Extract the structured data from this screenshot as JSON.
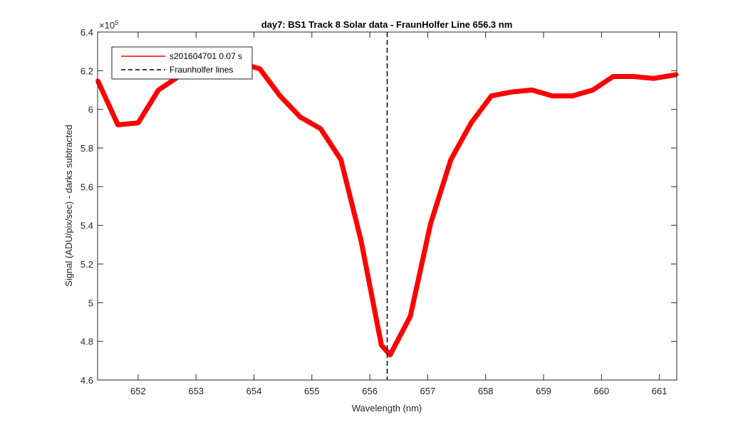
{
  "chart_data": {
    "type": "line",
    "title": "day7: BS1  Track 8 Solar data - FraunHolfer Line 656.3 nm",
    "xlabel": "Wavelength (nm)",
    "ylabel": "Signal (ADU/pix/sec) - darks subtracted",
    "y_exponent_label": "×10",
    "y_exponent_power": "5",
    "xlim": [
      651.3,
      661.3
    ],
    "ylim": [
      4.6,
      6.4
    ],
    "y_multiplier": 100000,
    "x_ticks": [
      652,
      653,
      654,
      655,
      656,
      657,
      658,
      659,
      660,
      661
    ],
    "x_tick_labels": [
      "652",
      "653",
      "654",
      "655",
      "656",
      "657",
      "658",
      "659",
      "660",
      "661"
    ],
    "y_ticks": [
      4.6,
      4.8,
      5.0,
      5.2,
      5.4,
      5.6,
      5.8,
      6.0,
      6.2,
      6.4
    ],
    "y_tick_labels": [
      "4.6",
      "4.8",
      "5",
      "5.2",
      "5.4",
      "5.6",
      "5.8",
      "6",
      "6.2",
      "6.4"
    ],
    "grid": false,
    "legend_position": "top-left",
    "series": [
      {
        "name": "s201604701 0.07 s",
        "color": "#ff0000",
        "style": "solid",
        "x": [
          651.3,
          651.65,
          652.0,
          652.35,
          652.7,
          653.05,
          653.4,
          653.75,
          654.1,
          654.45,
          654.8,
          655.15,
          655.5,
          655.85,
          656.2,
          656.35,
          656.7,
          657.05,
          657.4,
          657.75,
          658.1,
          658.45,
          658.8,
          659.15,
          659.5,
          659.85,
          660.2,
          660.55,
          660.9,
          661.3
        ],
        "y": [
          6.15,
          5.92,
          5.93,
          6.1,
          6.17,
          6.21,
          6.23,
          6.24,
          6.21,
          6.07,
          5.96,
          5.9,
          5.74,
          5.32,
          4.78,
          4.73,
          4.93,
          5.41,
          5.74,
          5.93,
          6.07,
          6.09,
          6.1,
          6.07,
          6.07,
          6.1,
          6.17,
          6.17,
          6.16,
          6.18
        ]
      }
    ],
    "reference_lines": [
      {
        "name": "Fraunholfer lines",
        "x": 656.3,
        "color": "#000000",
        "style": "dashed"
      }
    ]
  }
}
